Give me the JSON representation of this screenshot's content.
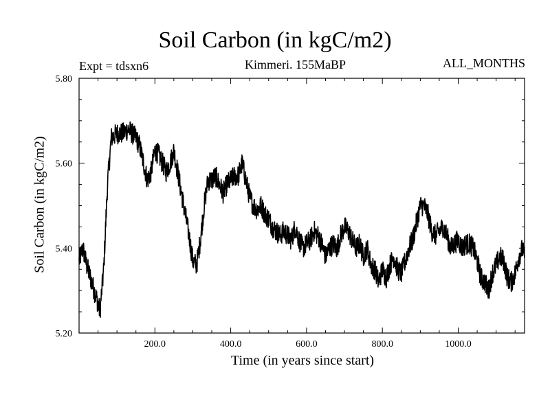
{
  "chart_data": {
    "type": "line",
    "title": "Soil Carbon (in kgC/m2)",
    "subtitle_left": "Expt = tdsxn6",
    "subtitle_center": "Kimmeri. 155MaBP",
    "subtitle_right": "ALL_MONTHS",
    "xlabel": "Time (in years since start)",
    "ylabel": "Soil Carbon (in kgC/m2)",
    "xlim": [
      0,
      1175
    ],
    "ylim": [
      5.2,
      5.8
    ],
    "x_ticks": [
      200.0,
      400.0,
      600.0,
      800.0,
      1000.0
    ],
    "x_tick_labels": [
      "200.0",
      "400.0",
      "600.0",
      "800.0",
      "1000.0"
    ],
    "y_ticks": [
      5.2,
      5.4,
      5.6,
      5.8
    ],
    "y_tick_labels": [
      "5.20",
      "5.40",
      "5.60",
      "5.80"
    ],
    "grid": false,
    "line_color": "#000000",
    "series": [
      {
        "x": [
          0,
          10,
          20,
          30,
          40,
          50,
          55,
          65,
          75,
          85,
          100,
          115,
          130,
          140,
          150,
          160,
          170,
          180,
          190,
          200,
          210,
          220,
          230,
          240,
          250,
          260,
          270,
          280,
          290,
          300,
          310,
          320,
          330,
          340,
          350,
          360,
          370,
          380,
          390,
          400,
          410,
          420,
          430,
          440,
          450,
          460,
          470,
          480,
          490,
          500,
          510,
          520,
          530,
          540,
          550,
          560,
          570,
          580,
          590,
          600,
          610,
          620,
          630,
          640,
          650,
          660,
          670,
          680,
          690,
          700,
          710,
          720,
          730,
          740,
          750,
          760,
          770,
          780,
          790,
          800,
          810,
          820,
          830,
          840,
          850,
          860,
          870,
          880,
          890,
          900,
          910,
          920,
          930,
          940,
          950,
          960,
          970,
          980,
          990,
          1000,
          1010,
          1020,
          1030,
          1040,
          1050,
          1060,
          1070,
          1080,
          1090,
          1100,
          1110,
          1120,
          1130,
          1140,
          1150,
          1160,
          1170,
          1175
        ],
        "y": [
          5.37,
          5.4,
          5.36,
          5.33,
          5.3,
          5.27,
          5.25,
          5.35,
          5.55,
          5.66,
          5.67,
          5.67,
          5.68,
          5.67,
          5.66,
          5.64,
          5.6,
          5.56,
          5.58,
          5.63,
          5.62,
          5.6,
          5.58,
          5.6,
          5.63,
          5.58,
          5.53,
          5.48,
          5.43,
          5.37,
          5.36,
          5.42,
          5.5,
          5.56,
          5.56,
          5.57,
          5.55,
          5.53,
          5.55,
          5.56,
          5.57,
          5.57,
          5.6,
          5.56,
          5.52,
          5.5,
          5.49,
          5.5,
          5.48,
          5.47,
          5.45,
          5.44,
          5.43,
          5.44,
          5.43,
          5.42,
          5.45,
          5.42,
          5.4,
          5.41,
          5.42,
          5.44,
          5.43,
          5.41,
          5.38,
          5.4,
          5.41,
          5.4,
          5.43,
          5.45,
          5.44,
          5.42,
          5.4,
          5.41,
          5.38,
          5.4,
          5.36,
          5.35,
          5.32,
          5.35,
          5.33,
          5.36,
          5.38,
          5.35,
          5.34,
          5.37,
          5.4,
          5.42,
          5.46,
          5.5,
          5.5,
          5.48,
          5.44,
          5.43,
          5.44,
          5.45,
          5.43,
          5.4,
          5.41,
          5.42,
          5.4,
          5.41,
          5.41,
          5.4,
          5.37,
          5.33,
          5.32,
          5.3,
          5.34,
          5.36,
          5.38,
          5.37,
          5.33,
          5.32,
          5.34,
          5.38,
          5.4,
          5.37
        ]
      }
    ]
  }
}
